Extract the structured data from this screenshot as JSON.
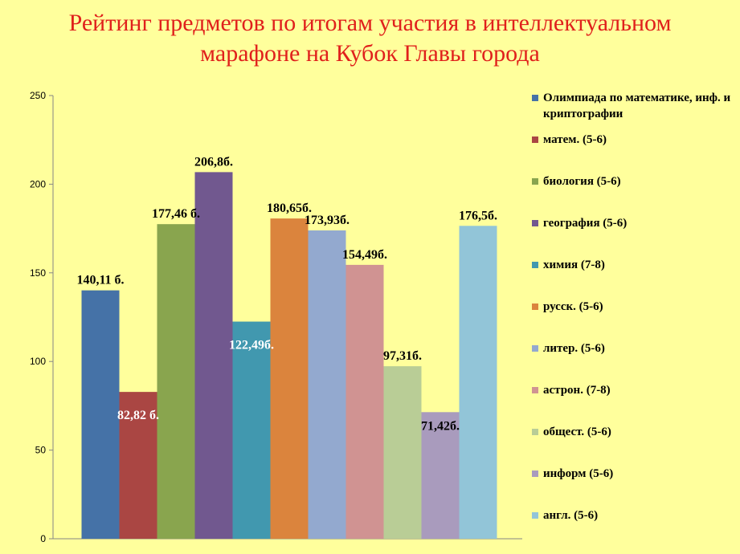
{
  "title": {
    "line1": "Рейтинг предметов по итогам участия в интеллектуальном",
    "line2": "марафоне на Кубок Главы города"
  },
  "chart_data": {
    "type": "bar",
    "ylim": [
      0,
      250
    ],
    "yticks": [
      0,
      50,
      100,
      150,
      200,
      250
    ],
    "grid": false,
    "legend_position": "right",
    "series": [
      {
        "name": "Олимпиада по математике, инф. и криптографии",
        "value": 140.11,
        "label": "140,11 б.",
        "color": "#4572a7"
      },
      {
        "name": "матем. (5-6)",
        "value": 82.82,
        "label": "82,82 б.",
        "color": "#aa4643"
      },
      {
        "name": "биология (5-6)",
        "value": 177.46,
        "label": "177,46 б.",
        "color": "#89a54e"
      },
      {
        "name": "география (5-6)",
        "value": 206.8,
        "label": "206,8б.",
        "color": "#71588f"
      },
      {
        "name": "химия (7-8)",
        "value": 122.49,
        "label": "122,49б.",
        "color": "#4198af"
      },
      {
        "name": "русск. (5-6)",
        "value": 180.65,
        "label": "180,65б.",
        "color": "#db843d"
      },
      {
        "name": "литер. (5-6)",
        "value": 173.93,
        "label": "173,93б.",
        "color": "#93a9cf"
      },
      {
        "name": "астрон. (7-8)",
        "value": 154.49,
        "label": "154,49б.",
        "color": "#d09392"
      },
      {
        "name": "общест. (5-6)",
        "value": 97.31,
        "label": "97,31б.",
        "color": "#b9cd96"
      },
      {
        "name": "информ (5-6)",
        "value": 71.42,
        "label": "71,42б.",
        "color": "#a99bbd"
      },
      {
        "name": "англ. (5-6)",
        "value": 176.5,
        "label": "176,5б.",
        "color": "#92c5d8"
      }
    ]
  }
}
